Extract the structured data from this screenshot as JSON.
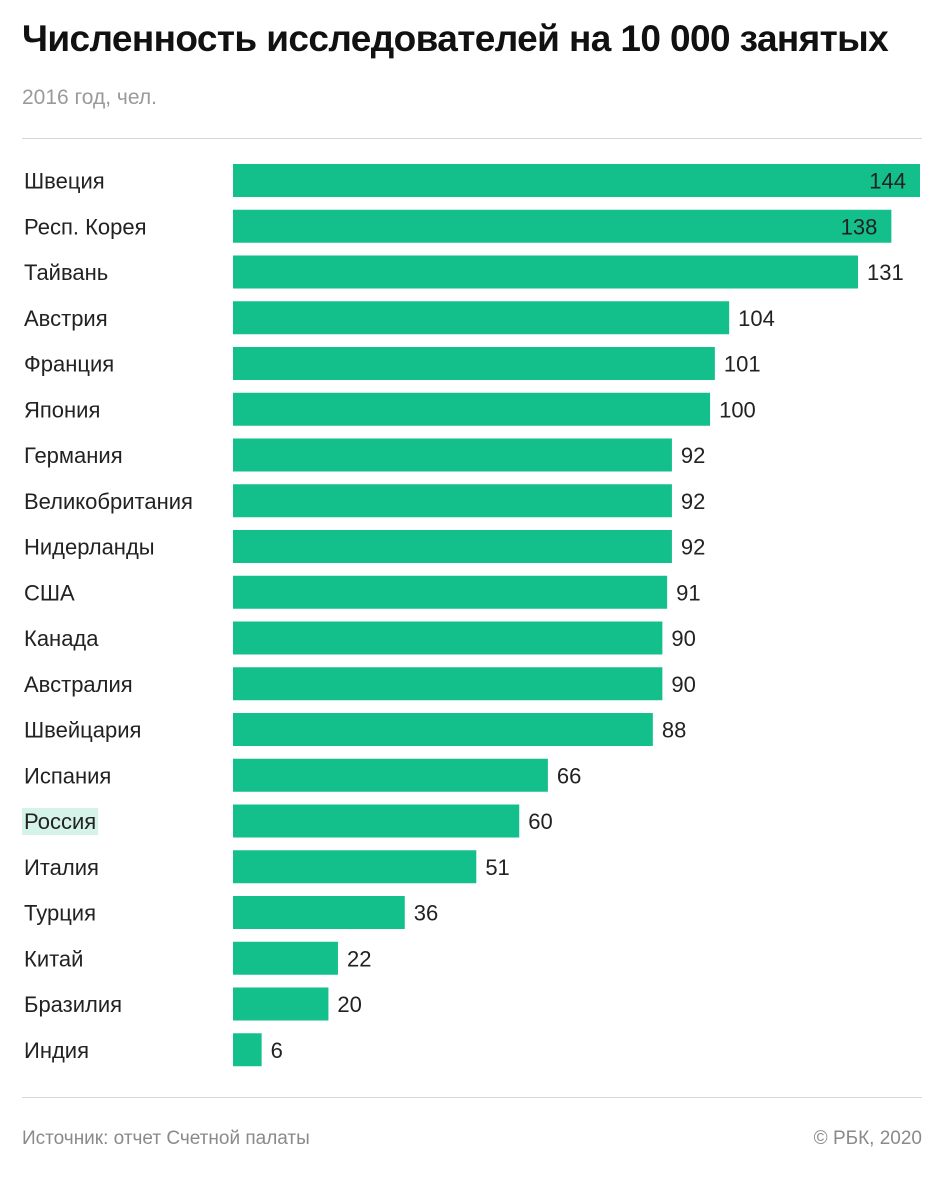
{
  "colors": {
    "bar": "#13bf8a",
    "highlight_bg": "#d5f3e8"
  },
  "chart_data": {
    "type": "bar",
    "orientation": "horizontal",
    "title": "Численность исследователей на 10 000 занятых",
    "subtitle": "2016 год, чел.",
    "highlight": "Россия",
    "categories": [
      "Швеция",
      "Респ. Корея",
      "Тайвань",
      "Австрия",
      "Франция",
      "Япония",
      "Германия",
      "Великобритания",
      "Нидерланды",
      "США",
      "Канада",
      "Австралия",
      "Швейцария",
      "Испания",
      "Россия",
      "Италия",
      "Турция",
      "Китай",
      "Бразилия",
      "Индия"
    ],
    "values": [
      144,
      138,
      131,
      104,
      101,
      100,
      92,
      92,
      92,
      91,
      90,
      90,
      88,
      66,
      60,
      51,
      36,
      22,
      20,
      6
    ],
    "xlim": [
      0,
      144
    ],
    "grid": false,
    "legend": "none"
  },
  "footer": {
    "source": "Источник: отчет Счетной палаты",
    "copyright": "© РБК, 2020"
  }
}
